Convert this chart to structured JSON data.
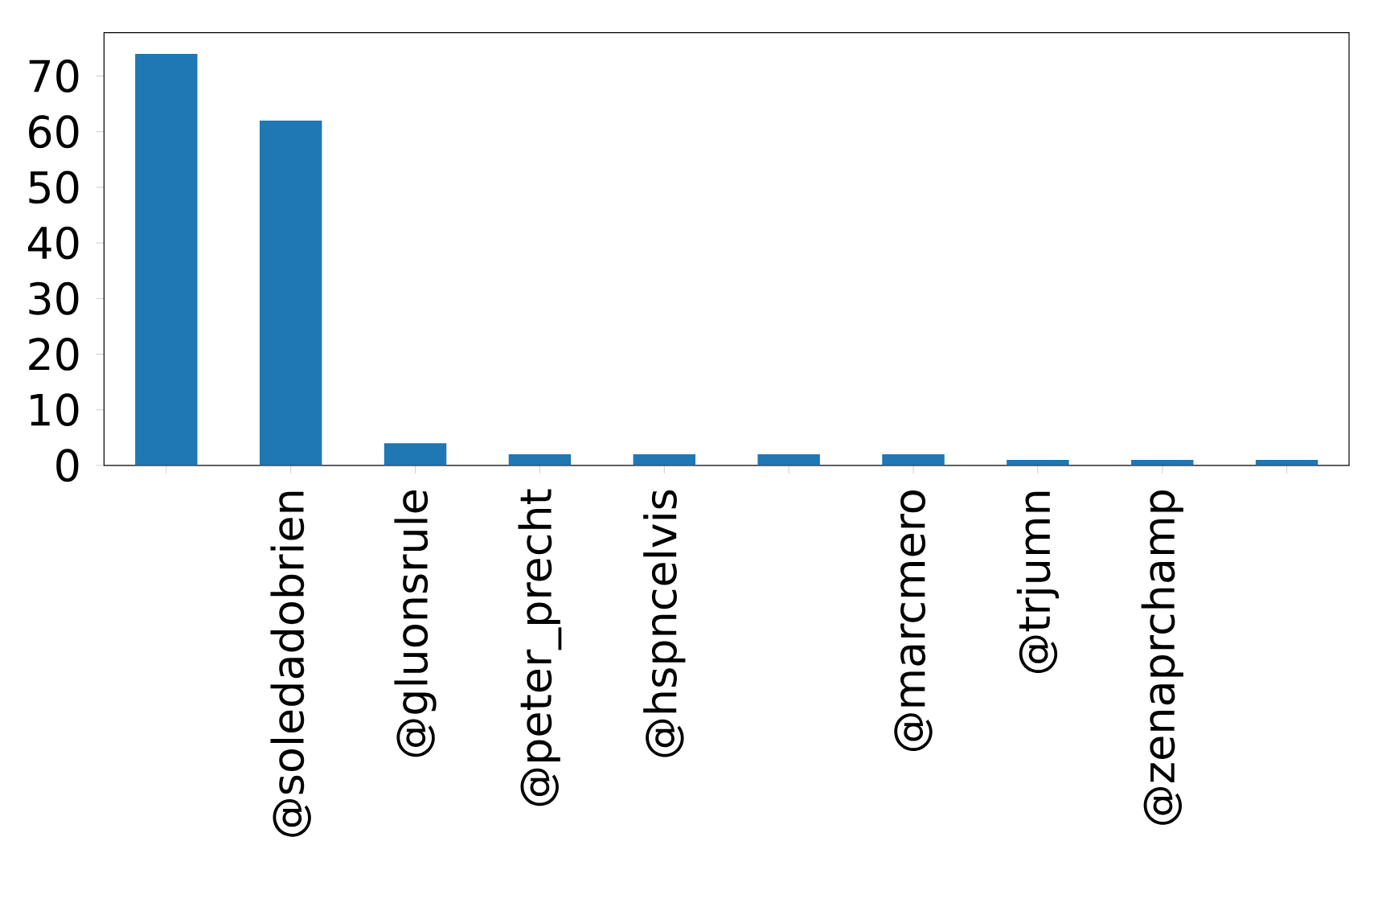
{
  "chart_data": {
    "type": "bar",
    "categories": [
      null,
      "@soledadobrien",
      "@gluonsrule",
      "@peter_precht",
      "@hspncelvis",
      null,
      "@marcmero",
      "@trjumn",
      "@zenaprchamp",
      null
    ],
    "values": [
      74,
      62,
      4,
      2,
      2,
      2,
      2,
      1,
      1,
      1
    ],
    "color": "#1f77b4",
    "ylim": [
      0,
      77.8
    ],
    "yticks": [
      0,
      10,
      20,
      30,
      40,
      50,
      60,
      70
    ],
    "grid": false
  }
}
